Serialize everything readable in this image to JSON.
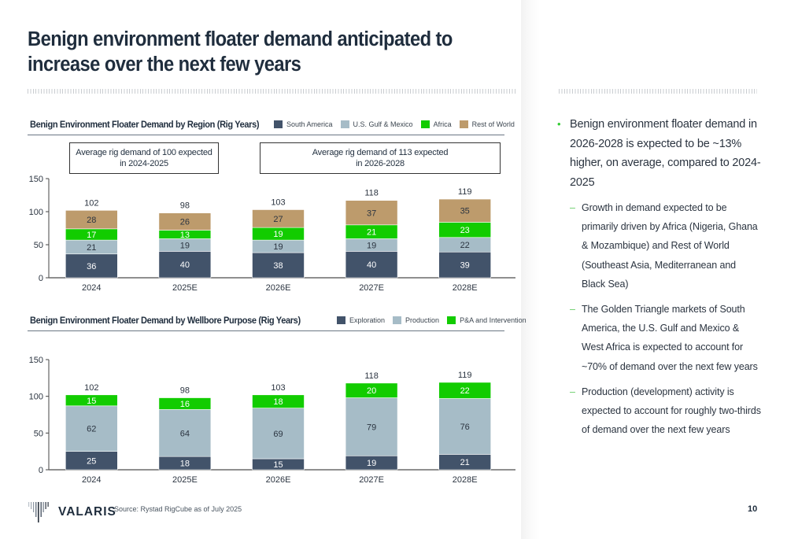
{
  "slide": {
    "title": "Benign environment floater demand anticipated to increase over the next few years",
    "page_number": "10",
    "source": "Source: Rystad RigCube as of July 2025",
    "logo_text": "VALARIS"
  },
  "colors": {
    "south_america": "#42536a",
    "us_gulf_mexico": "#a6bcc7",
    "africa": "#12cc00",
    "rest_of_world": "#bd9b6c",
    "exploration": "#42536a",
    "production": "#a6bcc7",
    "pa_intervention": "#12cc00",
    "bullet_accent": "#33cc33"
  },
  "callouts": {
    "left": "Average rig demand of 100 expected in 2024-2025",
    "left_line1": "Average rig demand of 100 expected",
    "left_line2": "in 2024-2025",
    "right_line1": "Average rig demand of 113 expected",
    "right_line2": "in 2026-2028"
  },
  "chart_data": [
    {
      "type": "bar",
      "stacked": true,
      "title": "Benign Environment Floater Demand by Region (Rig Years)",
      "categories": [
        "2024",
        "2025E",
        "2026E",
        "2027E",
        "2028E"
      ],
      "series": [
        {
          "name": "South America",
          "values": [
            36,
            40,
            38,
            40,
            39
          ]
        },
        {
          "name": "U.S. Gulf & Mexico",
          "values": [
            21,
            19,
            19,
            19,
            22
          ]
        },
        {
          "name": "Africa",
          "values": [
            17,
            13,
            19,
            21,
            23
          ]
        },
        {
          "name": "Rest of World",
          "values": [
            28,
            26,
            27,
            37,
            35
          ]
        }
      ],
      "totals": [
        102,
        98,
        103,
        118,
        119
      ],
      "yticks": [
        0,
        50,
        100,
        150
      ],
      "ylim": [
        0,
        150
      ],
      "xlabel": "",
      "ylabel": "",
      "legend_position": "top-right",
      "grid": false
    },
    {
      "type": "bar",
      "stacked": true,
      "title": "Benign Environment Floater Demand by Wellbore Purpose (Rig Years)",
      "categories": [
        "2024",
        "2025E",
        "2026E",
        "2027E",
        "2028E"
      ],
      "series": [
        {
          "name": "Exploration",
          "values": [
            25,
            18,
            15,
            19,
            21
          ]
        },
        {
          "name": "Production",
          "values": [
            62,
            64,
            69,
            79,
            76
          ]
        },
        {
          "name": "P&A and Intervention",
          "values": [
            15,
            16,
            18,
            20,
            22
          ]
        }
      ],
      "totals": [
        102,
        98,
        103,
        118,
        119
      ],
      "yticks": [
        0,
        50,
        100,
        150
      ],
      "ylim": [
        0,
        150
      ],
      "xlabel": "",
      "ylabel": "",
      "legend_position": "top-right",
      "grid": false
    }
  ],
  "bullets": [
    {
      "text": "Benign environment floater demand in 2026-2028 is expected to be ~13% higher, on average, compared to 2024-2025",
      "sub": [
        "Growth in demand expected to be primarily driven by Africa (Nigeria, Ghana & Mozambique) and Rest of World (Southeast Asia, Mediterranean and Black Sea)",
        "The Golden Triangle markets of South America, the U.S. Gulf and Mexico & West Africa is expected to account for ~70% of demand over the next few years",
        "Production (development) activity is expected to account for roughly two-thirds of demand over the next few years"
      ]
    }
  ],
  "symbols": {
    "bullet": "•",
    "dash": "–"
  }
}
